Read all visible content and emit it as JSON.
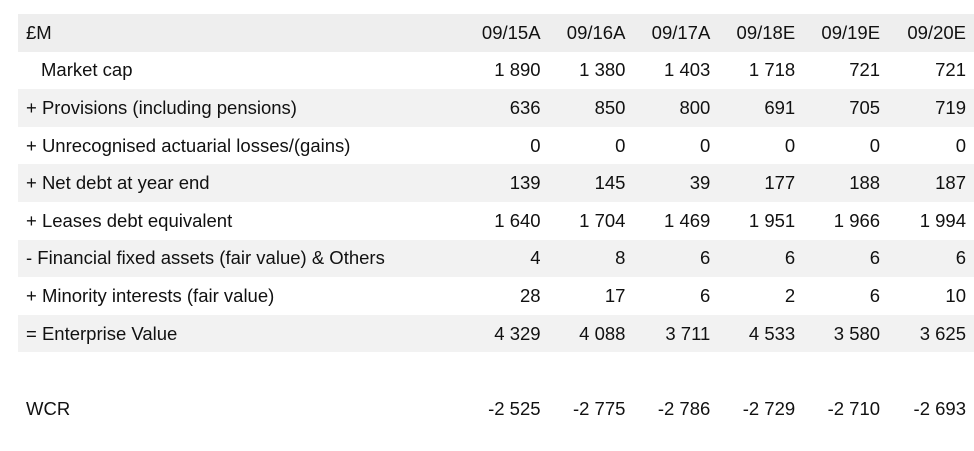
{
  "header": {
    "unit_label": "£M",
    "years": [
      "09/15A",
      "09/16A",
      "09/17A",
      "09/18E",
      "09/19E",
      "09/20E"
    ]
  },
  "rows": [
    {
      "label": "Market cap",
      "values": [
        "1 890",
        "1 380",
        "1 403",
        "1 718",
        "721",
        "721"
      ]
    },
    {
      "label": "+ Provisions (including pensions)",
      "values": [
        "636",
        "850",
        "800",
        "691",
        "705",
        "719"
      ]
    },
    {
      "label": "+ Unrecognised actuarial losses/(gains)",
      "values": [
        "0",
        "0",
        "0",
        "0",
        "0",
        "0"
      ]
    },
    {
      "label": "+ Net debt at year end",
      "values": [
        "139",
        "145",
        "39",
        "177",
        "188",
        "187"
      ]
    },
    {
      "label": "+ Leases debt equivalent",
      "values": [
        "1 640",
        "1 704",
        "1 469",
        "1 951",
        "1 966",
        "1 994"
      ]
    },
    {
      "label": "- Financial fixed assets (fair value) & Others",
      "values": [
        "4",
        "8",
        "6",
        "6",
        "6",
        "6"
      ]
    },
    {
      "label": "+ Minority interests (fair value)",
      "values": [
        "28",
        "17",
        "6",
        "2",
        "6",
        "10"
      ]
    },
    {
      "label": "= Enterprise Value",
      "values": [
        "4 329",
        "4 088",
        "3 711",
        "4 533",
        "3 580",
        "3 625"
      ]
    }
  ],
  "wcr": {
    "label": "WCR",
    "values": [
      "-2 525",
      "-2 775",
      "-2 786",
      "-2 729",
      "-2 710",
      "-2 693"
    ]
  }
}
